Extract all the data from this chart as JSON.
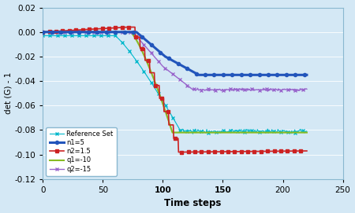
{
  "title": "",
  "xlabel": "Time steps",
  "ylabel": "det (G) - 1",
  "xlim": [
    0,
    250
  ],
  "ylim": [
    -0.12,
    0.02
  ],
  "yticks": [
    0.02,
    0.0,
    -0.02,
    -0.04,
    -0.06,
    -0.08,
    -0.1,
    -0.12
  ],
  "xticks": [
    0,
    50,
    100,
    150,
    200,
    250
  ],
  "background_color": "#d4e8f5",
  "bold_xticks": [
    "100",
    "150"
  ],
  "series": {
    "reference": {
      "label": "Reference Set",
      "color": "#00b8cc",
      "final_value": -0.081
    },
    "n1": {
      "label": "n1=5",
      "color": "#2255bb",
      "final_value": -0.035
    },
    "n2": {
      "label": "n2=1.5",
      "color": "#cc2222",
      "final_value": -0.098
    },
    "q1": {
      "label": "q1=-10",
      "color": "#88bb22",
      "final_value": -0.082
    },
    "q2": {
      "label": "q2=-15",
      "color": "#9966cc",
      "final_value": -0.047
    }
  }
}
